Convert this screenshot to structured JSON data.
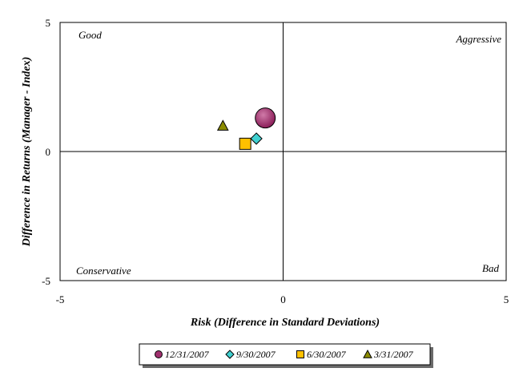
{
  "chart_data": {
    "type": "scatter",
    "title": "",
    "xlabel": "Risk (Difference in Standard Deviations)",
    "ylabel": "Difference in Returns (Manager - Index)",
    "xlim": [
      -5,
      5
    ],
    "ylim": [
      -5,
      5
    ],
    "x_ticks": [
      "-5",
      "0",
      "5"
    ],
    "y_ticks": [
      "5",
      "0",
      "-5"
    ],
    "grid": false,
    "legend_position": "bottom",
    "quadrant_labels": {
      "top_left": "Good",
      "top_right": "Aggressive",
      "bottom_left": "Conservative",
      "bottom_right": "Bad"
    },
    "series": [
      {
        "name": "12/31/2007",
        "marker": "circle",
        "color": "#a0306e",
        "x": -0.4,
        "y": 1.3
      },
      {
        "name": "9/30/2007",
        "marker": "diamond",
        "color": "#40d0d0",
        "x": -0.6,
        "y": 0.5
      },
      {
        "name": "6/30/2007",
        "marker": "square",
        "color": "#ffc000",
        "x": -0.85,
        "y": 0.3
      },
      {
        "name": "3/31/2007",
        "marker": "triangle",
        "color": "#8b8b00",
        "x": -1.35,
        "y": 1.0
      }
    ]
  }
}
